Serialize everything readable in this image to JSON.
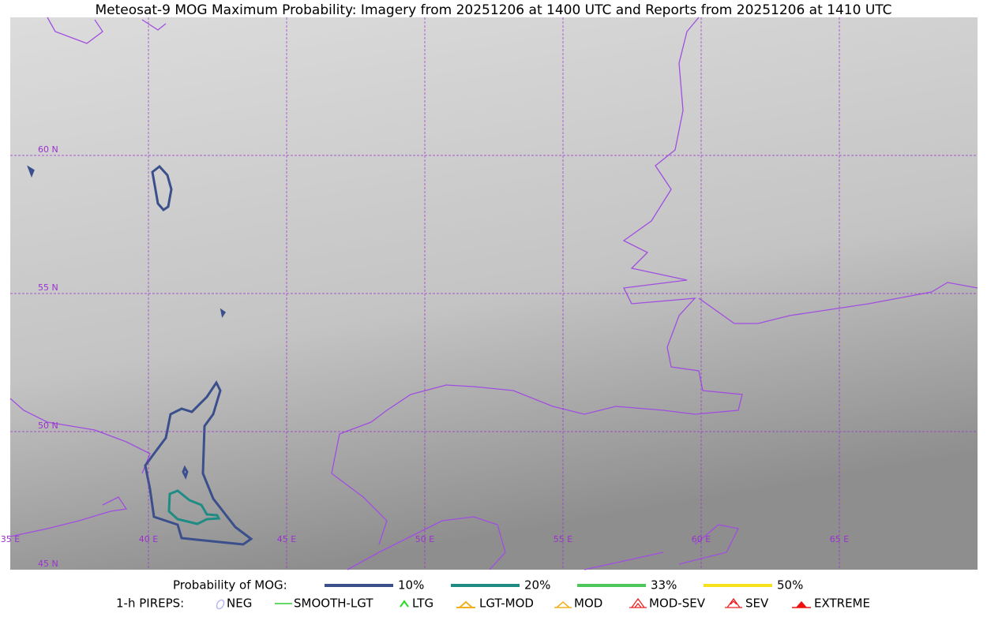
{
  "title": "Meteosat-9 MOG Maximum Probability: Imagery from 20251206 at 1400 UTC and Reports from 20251206 at 1410 UTC",
  "lat_labels": [
    "60 N",
    "55 N",
    "50 N",
    "45 N"
  ],
  "lon_labels": [
    "35 E",
    "40 E",
    "45 E",
    "50 E",
    "55 E",
    "60 E",
    "65 E"
  ],
  "legend": {
    "mog_title": "Probability of MOG:",
    "mog_levels": [
      {
        "label": "10%",
        "color": "#3a4f8c"
      },
      {
        "label": "20%",
        "color": "#1f8c84"
      },
      {
        "label": "33%",
        "color": "#4cc85a"
      },
      {
        "label": "50%",
        "color": "#f5e11c"
      }
    ],
    "pirep_title": "1-h PIREPS:",
    "pireps": [
      {
        "label": "NEG",
        "color": "#b8b8f0"
      },
      {
        "label": "SMOOTH-LGT",
        "color": "#33cc33"
      },
      {
        "label": "LTG",
        "color": "#22dd22"
      },
      {
        "label": "LGT-MOD",
        "color": "#f0b020"
      },
      {
        "label": "MOD",
        "color": "#f0b020"
      },
      {
        "label": "MOD-SEV",
        "color": "#ee2222"
      },
      {
        "label": "SEV",
        "color": "#ee2222"
      },
      {
        "label": "EXTREME",
        "color": "#ee1111"
      }
    ]
  }
}
